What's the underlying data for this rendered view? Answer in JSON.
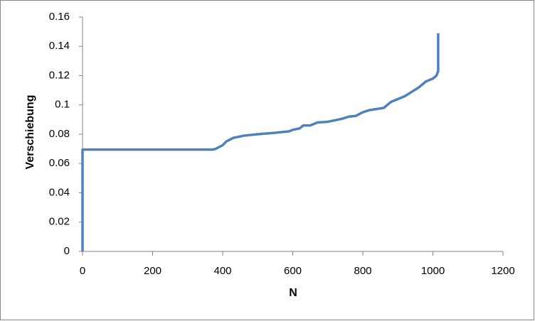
{
  "chart_data": {
    "type": "line",
    "xlabel": "N",
    "ylabel": "Verschiebung",
    "x": [
      0,
      0,
      370,
      380,
      400,
      410,
      430,
      460,
      500,
      550,
      590,
      600,
      620,
      630,
      650,
      670,
      700,
      740,
      760,
      780,
      800,
      820,
      860,
      880,
      920,
      940,
      960,
      980,
      1000,
      1010,
      1015,
      1015
    ],
    "values": [
      0,
      0.0695,
      0.0695,
      0.07,
      0.0725,
      0.075,
      0.0775,
      0.079,
      0.08,
      0.081,
      0.082,
      0.083,
      0.084,
      0.086,
      0.086,
      0.088,
      0.0885,
      0.0905,
      0.092,
      0.0925,
      0.095,
      0.0965,
      0.098,
      0.102,
      0.106,
      0.109,
      0.112,
      0.116,
      0.118,
      0.12,
      0.123,
      0.149
    ],
    "color": "#4f81bd",
    "xlim": [
      0,
      1200
    ],
    "xticks": [
      0,
      200,
      400,
      600,
      800,
      1000,
      1200
    ],
    "ylim": [
      0,
      0.16
    ],
    "yticks": [
      0,
      0.02,
      0.04,
      0.06,
      0.08,
      0.1,
      0.12,
      0.14,
      0.16
    ],
    "grid": false
  }
}
